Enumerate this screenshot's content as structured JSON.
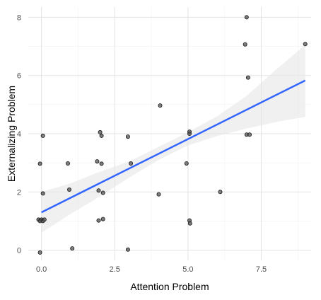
{
  "chart_data": {
    "type": "scatter",
    "xlabel": "Attention Problem",
    "ylabel": "Externalizing Problem",
    "xlim": [
      -0.45,
      9.2
    ],
    "ylim": [
      -0.35,
      8.35
    ],
    "x_ticks": [
      0,
      2.5,
      5,
      7.5
    ],
    "x_tick_labels": [
      "0.0",
      "2.5",
      "5.0",
      "7.5"
    ],
    "y_ticks": [
      0,
      2,
      4,
      6,
      8
    ],
    "y_tick_labels": [
      "0",
      "2",
      "4",
      "6",
      "8"
    ],
    "grid": true,
    "points": [
      {
        "x": -0.1,
        "y": 1.05
      },
      {
        "x": -0.05,
        "y": 1.0
      },
      {
        "x": 0.0,
        "y": 1.05
      },
      {
        "x": 0.05,
        "y": 1.0
      },
      {
        "x": 0.1,
        "y": 1.05
      },
      {
        "x": -0.05,
        "y": -0.08
      },
      {
        "x": -0.05,
        "y": 2.97
      },
      {
        "x": 0.05,
        "y": 3.93
      },
      {
        "x": 0.05,
        "y": 1.95
      },
      {
        "x": 0.9,
        "y": 2.98
      },
      {
        "x": 0.95,
        "y": 2.08
      },
      {
        "x": 1.05,
        "y": 0.06
      },
      {
        "x": 1.9,
        "y": 3.05
      },
      {
        "x": 2.0,
        "y": 4.05
      },
      {
        "x": 2.05,
        "y": 3.93
      },
      {
        "x": 2.05,
        "y": 2.97
      },
      {
        "x": 1.95,
        "y": 2.05
      },
      {
        "x": 2.1,
        "y": 1.97
      },
      {
        "x": 1.95,
        "y": 1.02
      },
      {
        "x": 2.1,
        "y": 1.07
      },
      {
        "x": 2.95,
        "y": 3.9
      },
      {
        "x": 3.05,
        "y": 2.98
      },
      {
        "x": 2.95,
        "y": 0.02
      },
      {
        "x": 4.05,
        "y": 4.97
      },
      {
        "x": 4.0,
        "y": 1.92
      },
      {
        "x": 4.95,
        "y": 2.98
      },
      {
        "x": 5.05,
        "y": 4.07
      },
      {
        "x": 5.05,
        "y": 4.0
      },
      {
        "x": 5.05,
        "y": 1.02
      },
      {
        "x": 5.07,
        "y": 0.92
      },
      {
        "x": 6.1,
        "y": 2.0
      },
      {
        "x": 6.95,
        "y": 7.07
      },
      {
        "x": 7.0,
        "y": 8.0
      },
      {
        "x": 7.05,
        "y": 5.93
      },
      {
        "x": 7.0,
        "y": 3.97
      },
      {
        "x": 7.1,
        "y": 3.97
      },
      {
        "x": 9.0,
        "y": 7.08
      }
    ],
    "trend_line": {
      "x_start": 0.0,
      "x_end": 9.0,
      "y_start": 1.3,
      "y_end": 5.83
    },
    "confidence_band": {
      "x": [
        0,
        1,
        2,
        3,
        4,
        5,
        6,
        7,
        8,
        9
      ],
      "lower": [
        0.6,
        1.25,
        1.85,
        2.5,
        3.1,
        3.6,
        3.92,
        4.18,
        4.4,
        4.58
      ],
      "upper": [
        2.0,
        2.3,
        2.7,
        3.05,
        3.55,
        4.05,
        4.6,
        5.3,
        6.2,
        7.05
      ]
    },
    "colors": {
      "point_fill": "#525252",
      "point_stroke": "#1a1a1a",
      "trend_line": "#3366ff",
      "band": "#e6e6e6",
      "grid_major": "#e3e3e3",
      "grid_minor": "#f2f2f2"
    }
  }
}
